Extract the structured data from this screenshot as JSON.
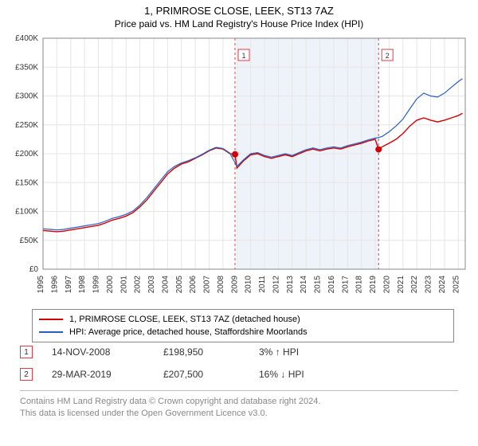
{
  "title": "1, PRIMROSE CLOSE, LEEK, ST13 7AZ",
  "subtitle": "Price paid vs. HM Land Registry's House Price Index (HPI)",
  "chart": {
    "type": "line",
    "background_color": "#ffffff",
    "grid_color": "#e6e6e6",
    "axis_color": "#888888",
    "plot_area_band": {
      "x_start": 2009.0,
      "x_end": 2019.25,
      "fill": "#eef3fa"
    },
    "xlim": [
      1995,
      2025.5
    ],
    "xtick_years": [
      1995,
      1996,
      1997,
      1998,
      1999,
      2000,
      2001,
      2002,
      2003,
      2004,
      2005,
      2006,
      2007,
      2008,
      2009,
      2010,
      2011,
      2012,
      2013,
      2014,
      2015,
      2016,
      2017,
      2018,
      2019,
      2020,
      2021,
      2022,
      2023,
      2024,
      2025
    ],
    "ylim": [
      0,
      400000
    ],
    "ytick_step": 50000,
    "ytick_labels": [
      "£0",
      "£50K",
      "£100K",
      "£150K",
      "£200K",
      "£250K",
      "£300K",
      "£350K",
      "£400K"
    ],
    "tick_fontsize": 10,
    "label_color": "#333333",
    "series": [
      {
        "name": "property",
        "label": "1, PRIMROSE CLOSE, LEEK, ST13 7AZ (detached house)",
        "color": "#d40000",
        "width": 1.4,
        "points": [
          [
            1995.0,
            67000
          ],
          [
            1995.5,
            66000
          ],
          [
            1996.0,
            65000
          ],
          [
            1996.5,
            66000
          ],
          [
            1997.0,
            68000
          ],
          [
            1997.5,
            70000
          ],
          [
            1998.0,
            72000
          ],
          [
            1998.5,
            74000
          ],
          [
            1999.0,
            76000
          ],
          [
            1999.5,
            80000
          ],
          [
            2000.0,
            85000
          ],
          [
            2000.5,
            88000
          ],
          [
            2001.0,
            92000
          ],
          [
            2001.5,
            98000
          ],
          [
            2002.0,
            108000
          ],
          [
            2002.5,
            120000
          ],
          [
            2003.0,
            135000
          ],
          [
            2003.5,
            150000
          ],
          [
            2004.0,
            165000
          ],
          [
            2004.5,
            175000
          ],
          [
            2005.0,
            182000
          ],
          [
            2005.5,
            186000
          ],
          [
            2006.0,
            192000
          ],
          [
            2006.5,
            198000
          ],
          [
            2007.0,
            205000
          ],
          [
            2007.5,
            210000
          ],
          [
            2008.0,
            208000
          ],
          [
            2008.5,
            200000
          ],
          [
            2008.87,
            198950
          ],
          [
            2009.0,
            175000
          ],
          [
            2009.5,
            188000
          ],
          [
            2010.0,
            198000
          ],
          [
            2010.5,
            200000
          ],
          [
            2011.0,
            195000
          ],
          [
            2011.5,
            192000
          ],
          [
            2012.0,
            195000
          ],
          [
            2012.5,
            198000
          ],
          [
            2013.0,
            195000
          ],
          [
            2013.5,
            200000
          ],
          [
            2014.0,
            205000
          ],
          [
            2014.5,
            208000
          ],
          [
            2015.0,
            205000
          ],
          [
            2015.5,
            208000
          ],
          [
            2016.0,
            210000
          ],
          [
            2016.5,
            208000
          ],
          [
            2017.0,
            212000
          ],
          [
            2017.5,
            215000
          ],
          [
            2018.0,
            218000
          ],
          [
            2018.5,
            222000
          ],
          [
            2019.0,
            225000
          ],
          [
            2019.24,
            207500
          ],
          [
            2019.5,
            212000
          ],
          [
            2020.0,
            218000
          ],
          [
            2020.5,
            225000
          ],
          [
            2021.0,
            235000
          ],
          [
            2021.5,
            248000
          ],
          [
            2022.0,
            258000
          ],
          [
            2022.5,
            262000
          ],
          [
            2023.0,
            258000
          ],
          [
            2023.5,
            255000
          ],
          [
            2024.0,
            258000
          ],
          [
            2024.5,
            262000
          ],
          [
            2025.0,
            266000
          ],
          [
            2025.3,
            270000
          ]
        ]
      },
      {
        "name": "hpi",
        "label": "HPI: Average price, detached house, Staffordshire Moorlands",
        "color": "#2a5fbf",
        "width": 1.2,
        "points": [
          [
            1995.0,
            70000
          ],
          [
            1995.5,
            69000
          ],
          [
            1996.0,
            68000
          ],
          [
            1996.5,
            69000
          ],
          [
            1997.0,
            71000
          ],
          [
            1997.5,
            73000
          ],
          [
            1998.0,
            75000
          ],
          [
            1998.5,
            77000
          ],
          [
            1999.0,
            79000
          ],
          [
            1999.5,
            83000
          ],
          [
            2000.0,
            88000
          ],
          [
            2000.5,
            91000
          ],
          [
            2001.0,
            95000
          ],
          [
            2001.5,
            101000
          ],
          [
            2002.0,
            111000
          ],
          [
            2002.5,
            124000
          ],
          [
            2003.0,
            139000
          ],
          [
            2003.5,
            154000
          ],
          [
            2004.0,
            169000
          ],
          [
            2004.5,
            178000
          ],
          [
            2005.0,
            184000
          ],
          [
            2005.5,
            188000
          ],
          [
            2006.0,
            193000
          ],
          [
            2006.5,
            199000
          ],
          [
            2007.0,
            206000
          ],
          [
            2007.5,
            211000
          ],
          [
            2008.0,
            209000
          ],
          [
            2008.5,
            201000
          ],
          [
            2009.0,
            178000
          ],
          [
            2009.5,
            190000
          ],
          [
            2010.0,
            200000
          ],
          [
            2010.5,
            202000
          ],
          [
            2011.0,
            197000
          ],
          [
            2011.5,
            194000
          ],
          [
            2012.0,
            197000
          ],
          [
            2012.5,
            200000
          ],
          [
            2013.0,
            197000
          ],
          [
            2013.5,
            202000
          ],
          [
            2014.0,
            207000
          ],
          [
            2014.5,
            210000
          ],
          [
            2015.0,
            207000
          ],
          [
            2015.5,
            210000
          ],
          [
            2016.0,
            212000
          ],
          [
            2016.5,
            210000
          ],
          [
            2017.0,
            214000
          ],
          [
            2017.5,
            217000
          ],
          [
            2018.0,
            220000
          ],
          [
            2018.5,
            224000
          ],
          [
            2019.0,
            227000
          ],
          [
            2019.24,
            228000
          ],
          [
            2019.5,
            230000
          ],
          [
            2020.0,
            238000
          ],
          [
            2020.5,
            248000
          ],
          [
            2021.0,
            260000
          ],
          [
            2021.5,
            278000
          ],
          [
            2022.0,
            295000
          ],
          [
            2022.5,
            305000
          ],
          [
            2023.0,
            300000
          ],
          [
            2023.5,
            298000
          ],
          [
            2024.0,
            305000
          ],
          [
            2024.5,
            315000
          ],
          [
            2025.0,
            325000
          ],
          [
            2025.3,
            330000
          ]
        ]
      }
    ],
    "sale_markers": [
      {
        "n": "1",
        "x": 2008.87,
        "y": 198950,
        "line_color": "#e63946"
      },
      {
        "n": "2",
        "x": 2019.24,
        "y": 207500,
        "line_color": "#e63946"
      }
    ]
  },
  "legend": {
    "series1": {
      "color": "#d40000",
      "label": "1, PRIMROSE CLOSE, LEEK, ST13 7AZ (detached house)"
    },
    "series2": {
      "color": "#2a5fbf",
      "label": "HPI: Average price, detached house, Staffordshire Moorlands"
    }
  },
  "sales": [
    {
      "n": "1",
      "date": "14-NOV-2008",
      "price": "£198,950",
      "hpi": "3%",
      "arrow": "↑",
      "hpi_label": "HPI"
    },
    {
      "n": "2",
      "date": "29-MAR-2019",
      "price": "£207,500",
      "hpi": "16%",
      "arrow": "↓",
      "hpi_label": "HPI"
    }
  ],
  "attribution": {
    "line1": "Contains HM Land Registry data © Crown copyright and database right 2024.",
    "line2": "This data is licensed under the Open Government Licence v3.0."
  }
}
